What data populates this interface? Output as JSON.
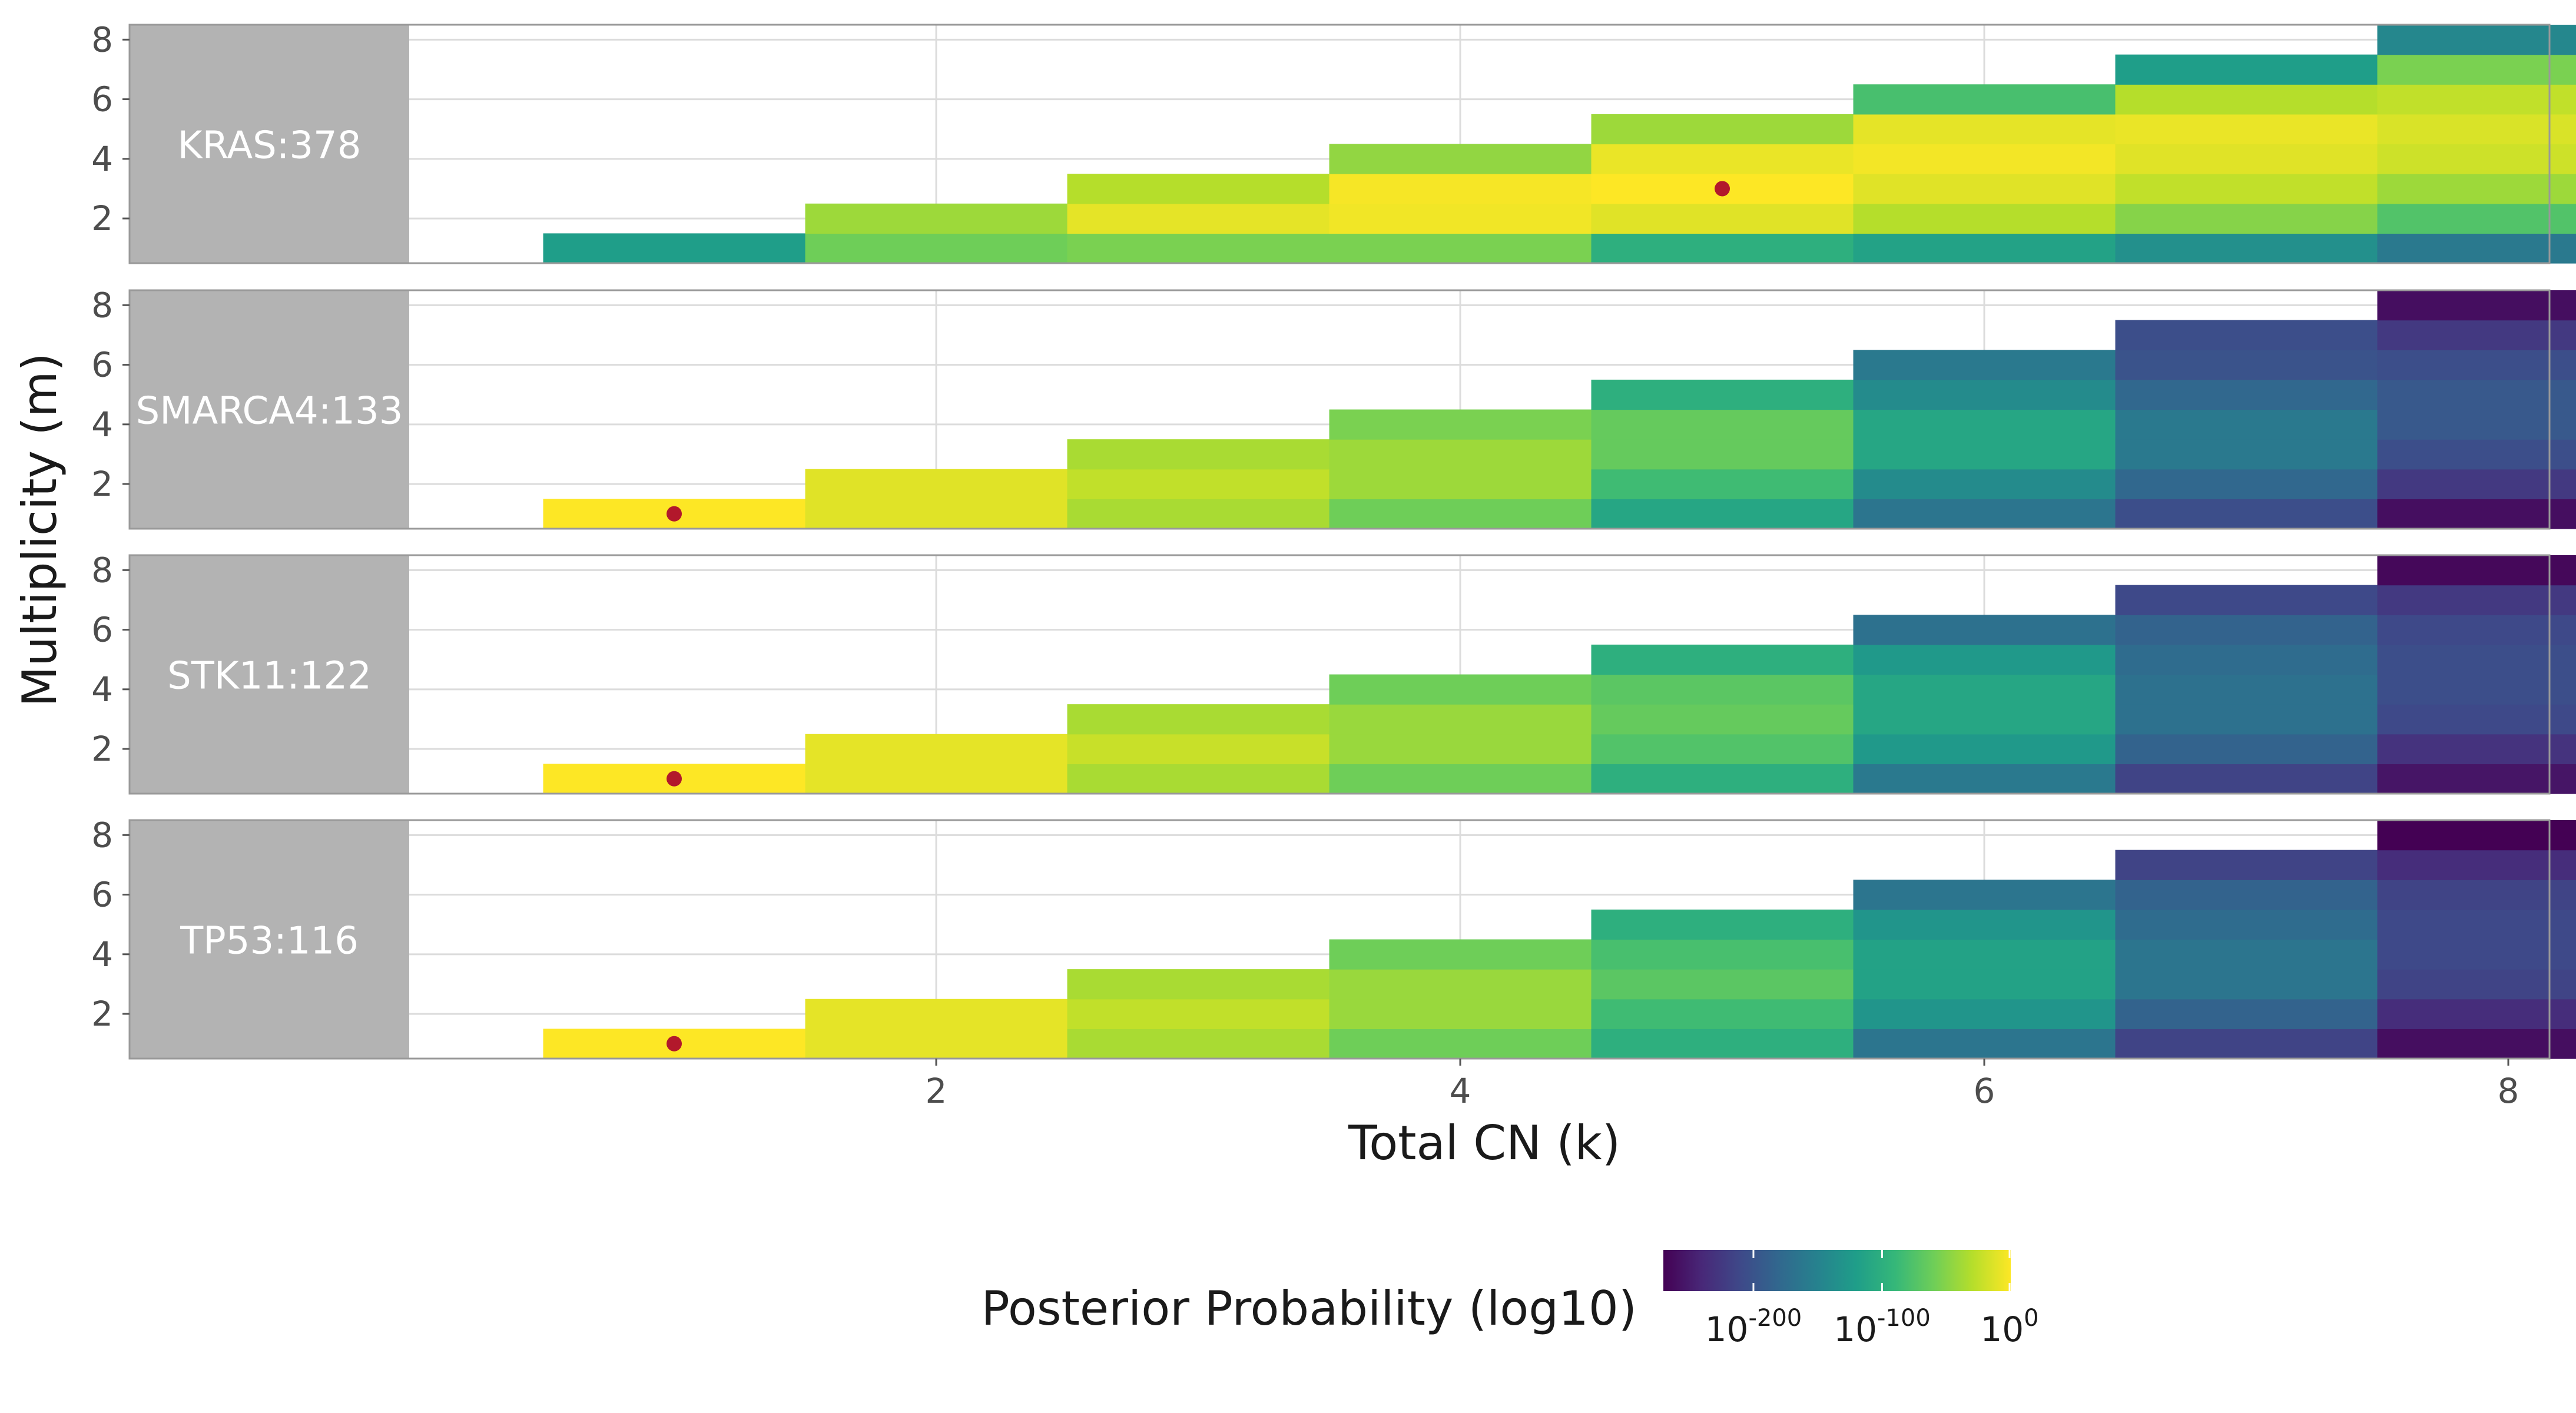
{
  "chart_data": {
    "type": "heatmap",
    "title": "",
    "xlabel": "Total CN (k)",
    "ylabel": "Multiplicity (m)",
    "x_ticks": [
      2,
      4,
      6,
      8
    ],
    "y_ticks": [
      2,
      4,
      6,
      8
    ],
    "xlim": [
      0,
      8.5
    ],
    "ylim": [
      0.5,
      8.5
    ],
    "grid": true,
    "legend": {
      "title": "Posterior Probability (log10)",
      "position": "bottom",
      "colormap": "viridis",
      "range": [
        -270,
        0
      ],
      "ticks": [
        {
          "value": -200,
          "base": "10",
          "exp": "-200"
        },
        {
          "value": -100,
          "base": "10",
          "exp": "-100"
        },
        {
          "value": 0,
          "base": "10",
          "exp": "0"
        }
      ]
    },
    "marker_color": "#b2182b",
    "facets": [
      {
        "label": "KRAS:378",
        "point": {
          "k": 5,
          "m": 3
        },
        "cells": [
          [
            -120
          ],
          [
            -60,
            -40
          ],
          [
            -55,
            -10,
            -30
          ],
          [
            -55,
            -5,
            -3,
            -45
          ],
          [
            -100,
            -12,
            0,
            -8,
            -40
          ],
          [
            -115,
            -30,
            -12,
            -4,
            -10,
            -80
          ],
          [
            -135,
            -50,
            -25,
            -12,
            -8,
            -30,
            -120
          ],
          [
            -160,
            -75,
            -40,
            -20,
            -15,
            -25,
            -55,
            -145
          ]
        ]
      },
      {
        "label": "SMARCA4:133",
        "point": {
          "k": 1,
          "m": 1
        },
        "cells": [
          [
            0
          ],
          [
            -12,
            -12
          ],
          [
            -35,
            -25,
            -35
          ],
          [
            -60,
            -40,
            -40,
            -55
          ],
          [
            -110,
            -85,
            -65,
            -65,
            -100
          ],
          [
            -165,
            -140,
            -110,
            -110,
            -140,
            -160
          ],
          [
            -205,
            -180,
            -160,
            -160,
            -180,
            -200,
            -205
          ],
          [
            -260,
            -225,
            -205,
            -195,
            -195,
            -205,
            -225,
            -260
          ]
        ]
      },
      {
        "label": "STK11:122",
        "point": {
          "k": 1,
          "m": 1
        },
        "cells": [
          [
            0
          ],
          [
            -10,
            -10
          ],
          [
            -35,
            -22,
            -35
          ],
          [
            -60,
            -42,
            -42,
            -60
          ],
          [
            -100,
            -75,
            -65,
            -70,
            -100
          ],
          [
            -160,
            -125,
            -110,
            -110,
            -125,
            -170
          ],
          [
            -215,
            -185,
            -170,
            -170,
            -175,
            -185,
            -210
          ],
          [
            -255,
            -230,
            -210,
            -205,
            -205,
            -210,
            -225,
            -265
          ]
        ]
      },
      {
        "label": "TP53:116",
        "point": {
          "k": 1,
          "m": 1
        },
        "cells": [
          [
            0
          ],
          [
            -10,
            -10
          ],
          [
            -35,
            -25,
            -35
          ],
          [
            -60,
            -42,
            -42,
            -60
          ],
          [
            -100,
            -85,
            -70,
            -80,
            -100
          ],
          [
            -165,
            -130,
            -115,
            -115,
            -130,
            -165
          ],
          [
            -215,
            -185,
            -165,
            -165,
            -175,
            -185,
            -215
          ],
          [
            -260,
            -235,
            -215,
            -210,
            -210,
            -215,
            -235,
            -270
          ]
        ]
      }
    ]
  }
}
